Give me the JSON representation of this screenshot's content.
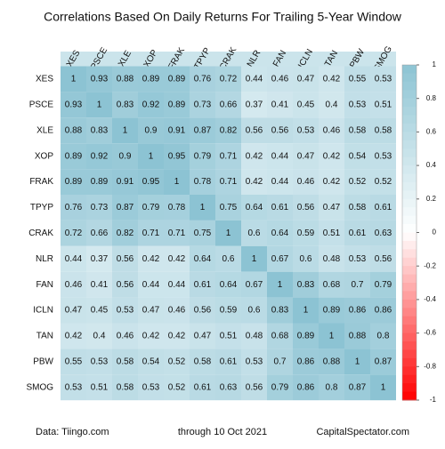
{
  "chart_data": {
    "type": "heatmap",
    "title": "Correlations Based On Daily Returns For Trailing 5-Year Window",
    "categories": [
      "XES",
      "PSCE",
      "XLE",
      "XOP",
      "FRAK",
      "TPYP",
      "CRAK",
      "NLR",
      "FAN",
      "ICLN",
      "TAN",
      "PBW",
      "SMOG"
    ],
    "values": [
      [
        1,
        0.93,
        0.88,
        0.89,
        0.89,
        0.76,
        0.72,
        0.44,
        0.46,
        0.47,
        0.42,
        0.55,
        0.53
      ],
      [
        0.93,
        1,
        0.83,
        0.92,
        0.89,
        0.73,
        0.66,
        0.37,
        0.41,
        0.45,
        0.4,
        0.53,
        0.51
      ],
      [
        0.88,
        0.83,
        1,
        0.9,
        0.91,
        0.87,
        0.82,
        0.56,
        0.56,
        0.53,
        0.46,
        0.58,
        0.58
      ],
      [
        0.89,
        0.92,
        0.9,
        1,
        0.95,
        0.79,
        0.71,
        0.42,
        0.44,
        0.47,
        0.42,
        0.54,
        0.53
      ],
      [
        0.89,
        0.89,
        0.91,
        0.95,
        1,
        0.78,
        0.71,
        0.42,
        0.44,
        0.46,
        0.42,
        0.52,
        0.52
      ],
      [
        0.76,
        0.73,
        0.87,
        0.79,
        0.78,
        1,
        0.75,
        0.64,
        0.61,
        0.56,
        0.47,
        0.58,
        0.61
      ],
      [
        0.72,
        0.66,
        0.82,
        0.71,
        0.71,
        0.75,
        1,
        0.6,
        0.64,
        0.59,
        0.51,
        0.61,
        0.63
      ],
      [
        0.44,
        0.37,
        0.56,
        0.42,
        0.42,
        0.64,
        0.6,
        1,
        0.67,
        0.6,
        0.48,
        0.53,
        0.56
      ],
      [
        0.46,
        0.41,
        0.56,
        0.44,
        0.44,
        0.61,
        0.64,
        0.67,
        1,
        0.83,
        0.68,
        0.7,
        0.79
      ],
      [
        0.47,
        0.45,
        0.53,
        0.47,
        0.46,
        0.56,
        0.59,
        0.6,
        0.83,
        1,
        0.89,
        0.86,
        0.86
      ],
      [
        0.42,
        0.4,
        0.46,
        0.42,
        0.42,
        0.47,
        0.51,
        0.48,
        0.68,
        0.89,
        1,
        0.88,
        0.8
      ],
      [
        0.55,
        0.53,
        0.58,
        0.54,
        0.52,
        0.58,
        0.61,
        0.53,
        0.7,
        0.86,
        0.88,
        1,
        0.87
      ],
      [
        0.53,
        0.51,
        0.58,
        0.53,
        0.52,
        0.61,
        0.63,
        0.56,
        0.79,
        0.86,
        0.8,
        0.87,
        1
      ]
    ],
    "zlim": [
      -1,
      1
    ],
    "zticks": [
      1,
      0.8,
      0.6,
      0.4,
      0.2,
      0,
      -0.2,
      -0.4,
      -0.6,
      -0.8,
      -1
    ],
    "high_color": "#8cc3d3",
    "mid_color": "#ffffff",
    "low_color": "#ff0000",
    "footer": [
      "Data: Tiingo.com",
      "through 10 Oct 2021",
      "CapitalSpectator.com"
    ]
  }
}
